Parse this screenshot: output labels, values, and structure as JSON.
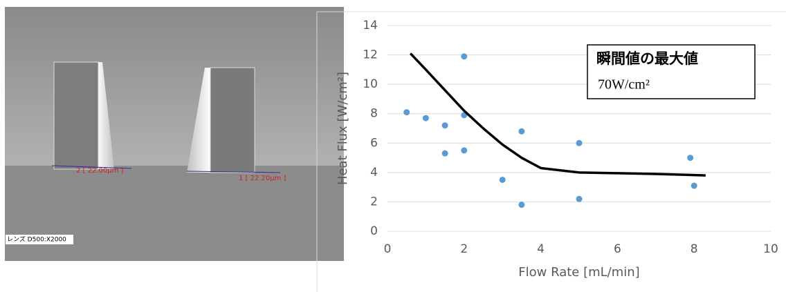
{
  "micrograph": {
    "labels": [
      "2 [ 22.00μm ]",
      "1 [ 22.20μm ]",
      "レンズ D500:X2000"
    ]
  },
  "chart_data": {
    "type": "scatter",
    "xlabel": "Flow Rate [mL/min]",
    "ylabel": "Heat Flux [W/cm²]",
    "annotation": {
      "title": "瞬間値の最大値",
      "text": "70W/cm²"
    },
    "xlim": [
      0,
      10
    ],
    "xticks": [
      0,
      2,
      4,
      6,
      8,
      10
    ],
    "ylim": [
      0,
      14
    ],
    "yticks": [
      0,
      2,
      4,
      6,
      8,
      10,
      12,
      14
    ],
    "grid": true,
    "series": [
      {
        "style": "points",
        "color": "#5b9bd5",
        "x": [
          0.5,
          1,
          1.5,
          1.5,
          2,
          2,
          2,
          3,
          3.5,
          3.5,
          5,
          5,
          7.9,
          8
        ],
        "values": [
          8.1,
          7.7,
          7.2,
          5.3,
          11.9,
          7.9,
          5.5,
          3.5,
          6.8,
          1.8,
          6.0,
          2.2,
          5.0,
          3.1
        ]
      },
      {
        "style": "line",
        "color": "#000000",
        "x": [
          0.6,
          1,
          1.5,
          2,
          2.5,
          3,
          3.5,
          4,
          5,
          6,
          7,
          8.3
        ],
        "values": [
          12.1,
          11.0,
          9.6,
          8.2,
          7.0,
          5.9,
          5.0,
          4.3,
          4.0,
          3.95,
          3.9,
          3.8
        ]
      }
    ]
  }
}
